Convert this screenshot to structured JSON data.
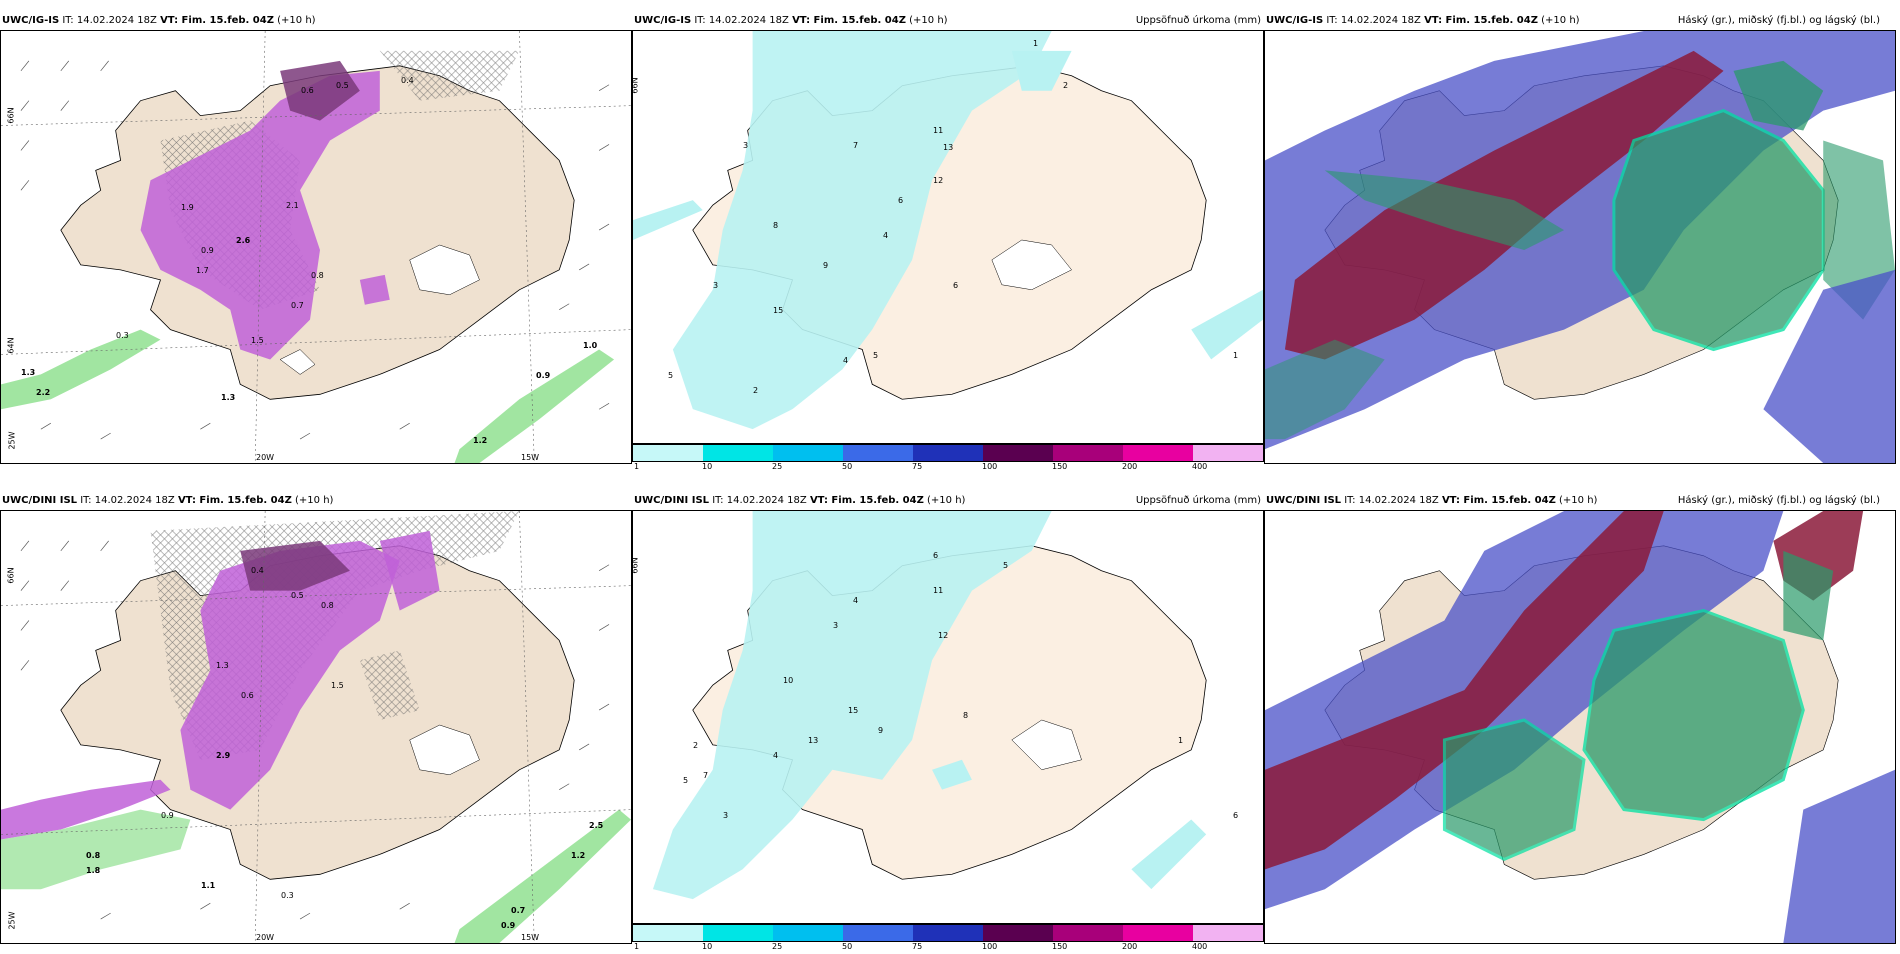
{
  "rows": [
    {
      "model": "UWC/IG-IS",
      "it_label": "IT: 14.02.2024 18Z",
      "vt_label": "VT: Fim. 15.feb. 04Z",
      "lead": "(+10 h)",
      "precip_title": "Uppsöfnuð úrkoma (mm)",
      "cloud_title": "Háský (gr.), miðský (fj.bl.) og lágský (bl.)",
      "left_values": [
        "0.6",
        "0.5",
        "0.4",
        "1.9",
        "2.6",
        "0.9",
        "1.7",
        "2.1",
        "1.5",
        "0.8",
        "0.3",
        "1.0",
        "0.9",
        "1.3",
        "1.2",
        "2.2",
        "1.3",
        "0.7"
      ],
      "mid_values": [
        "1",
        "2",
        "3",
        "5",
        "7",
        "11",
        "13",
        "12",
        "4",
        "6",
        "8",
        "9",
        "15",
        "3",
        "2",
        "1",
        "5",
        "4",
        "6"
      ]
    },
    {
      "model": "UWC/DINI ISL",
      "it_label": "IT: 14.02.2024 18Z",
      "vt_label": "VT: Fim. 15.feb. 04Z",
      "lead": "(+10 h)",
      "precip_title": "Uppsöfnuð úrkoma (mm)",
      "cloud_title": "Háský (gr.), miðský (fj.bl.) og lágský (bl.)",
      "left_values": [
        "0.4",
        "0.5",
        "0.8",
        "1.3",
        "2.9",
        "1.5",
        "0.6",
        "0.9",
        "0.3",
        "1.2",
        "1.1",
        "2.5",
        "0.7",
        "0.9",
        "1.8",
        "0.8"
      ],
      "mid_values": [
        "6",
        "5",
        "4",
        "3",
        "11",
        "12",
        "8",
        "10",
        "7",
        "9",
        "15",
        "2",
        "1",
        "13",
        "6",
        "5",
        "4",
        "3"
      ]
    }
  ],
  "axis_labels": {
    "lat66": "66N",
    "lon20": "20W",
    "lon15": "15W",
    "lon25": "25W",
    "lat64": "64N"
  },
  "colorbar": {
    "colors": [
      "#c6f8f8",
      "#00e5e5",
      "#00bfef",
      "#3b6ae8",
      "#1f31b8",
      "#5a0050",
      "#a8007a",
      "#e800a0",
      "#f2b2f2"
    ],
    "labels": [
      "1",
      "10",
      "25",
      "50",
      "75",
      "100",
      "150",
      "200",
      "400"
    ]
  },
  "colors": {
    "land": "#efe1d0",
    "precip_light": "#b8f2f2",
    "rain_purple": "#c060d8",
    "rain_dark": "#7a3a7a",
    "snow_green": "#90e090",
    "high_cloud": "#8b1a3a",
    "mid_cloud": "#2a9a6a",
    "low_cloud": "#4a50c8"
  }
}
